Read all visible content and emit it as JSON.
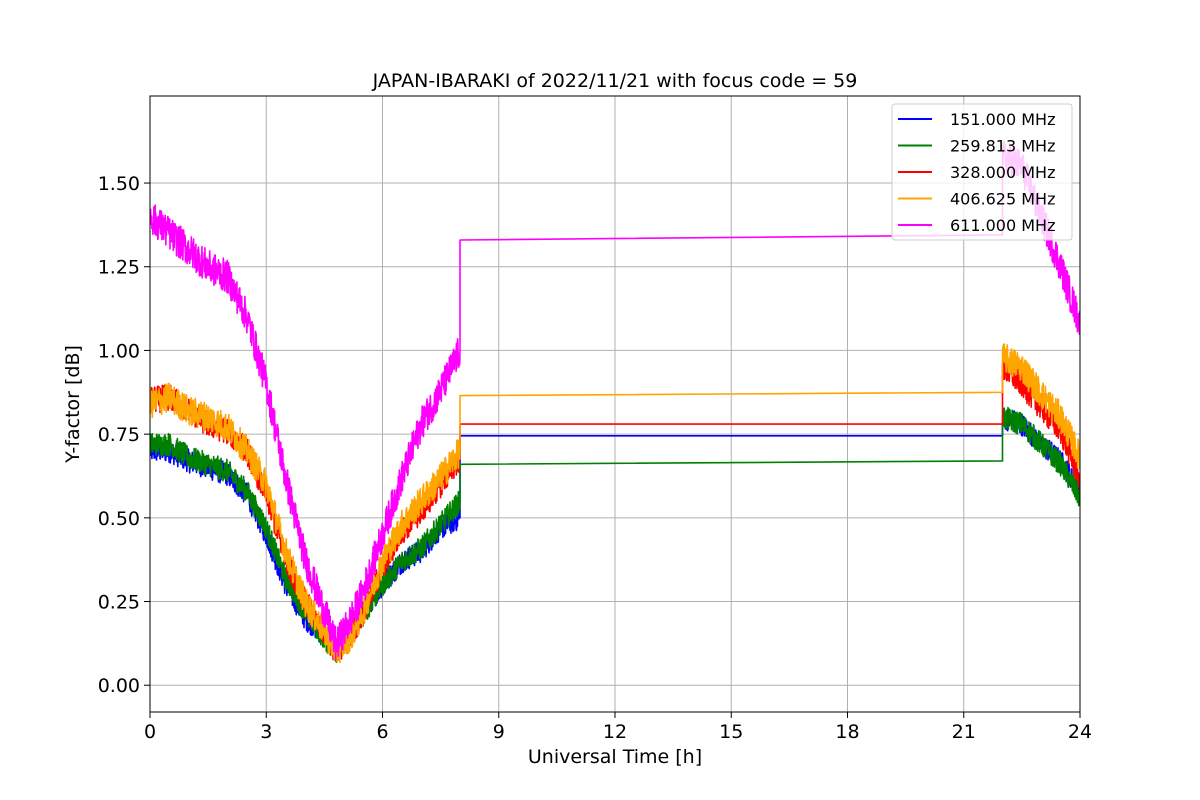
{
  "chart_data": {
    "type": "line",
    "title": "JAPAN-IBARAKI of 2022/11/21 with focus code = 59",
    "xlabel": "Universal Time [h]",
    "ylabel": "Y-factor [dB]",
    "xlim": [
      0,
      24
    ],
    "ylim": [
      -0.08,
      1.76
    ],
    "xticks": [
      0,
      3,
      6,
      9,
      12,
      15,
      18,
      21,
      24
    ],
    "xtick_labels": [
      "0",
      "3",
      "6",
      "9",
      "12",
      "15",
      "18",
      "21",
      "24"
    ],
    "yticks": [
      0.0,
      0.25,
      0.5,
      0.75,
      1.0,
      1.25,
      1.5
    ],
    "ytick_labels": [
      "0.00",
      "0.25",
      "0.50",
      "0.75",
      "1.00",
      "1.25",
      "1.50"
    ],
    "grid": true,
    "legend_position": "top-right",
    "series": [
      {
        "name": "151.000 MHz",
        "color": "#0000ff",
        "noise": 0.035,
        "x": [
          0,
          0.5,
          1.0,
          1.5,
          2.0,
          2.5,
          3.0,
          3.5,
          4.0,
          4.5,
          4.8,
          5.2,
          5.5,
          6.0,
          6.5,
          7.0,
          7.5,
          8.0,
          8.0,
          22.0,
          22.0,
          22.5,
          23.0,
          23.5,
          24.0
        ],
        "y": [
          0.7,
          0.7,
          0.67,
          0.65,
          0.63,
          0.57,
          0.45,
          0.3,
          0.2,
          0.15,
          0.1,
          0.18,
          0.22,
          0.3,
          0.37,
          0.4,
          0.47,
          0.5,
          0.745,
          0.745,
          0.8,
          0.78,
          0.72,
          0.67,
          0.58
        ]
      },
      {
        "name": "259.813 MHz",
        "color": "#008000",
        "noise": 0.035,
        "x": [
          0,
          0.5,
          1.0,
          1.5,
          2.0,
          2.5,
          3.0,
          3.5,
          4.0,
          4.5,
          4.8,
          5.2,
          5.5,
          6.0,
          6.5,
          7.0,
          7.5,
          8.0,
          8.0,
          22.0,
          22.0,
          22.5,
          23.0,
          23.5,
          24.0
        ],
        "y": [
          0.72,
          0.72,
          0.68,
          0.66,
          0.64,
          0.58,
          0.47,
          0.32,
          0.22,
          0.14,
          0.1,
          0.17,
          0.21,
          0.3,
          0.37,
          0.41,
          0.48,
          0.55,
          0.66,
          0.67,
          0.8,
          0.78,
          0.72,
          0.66,
          0.56
        ]
      },
      {
        "name": "328.000 MHz",
        "color": "#ff0000",
        "noise": 0.04,
        "x": [
          0,
          0.5,
          1.0,
          1.5,
          2.0,
          2.5,
          3.0,
          3.5,
          4.0,
          4.5,
          4.8,
          5.2,
          5.5,
          6.0,
          6.5,
          7.0,
          7.5,
          8.0,
          8.0,
          22.0,
          22.0,
          22.5,
          23.0,
          23.5,
          24.0
        ],
        "y": [
          0.85,
          0.86,
          0.82,
          0.78,
          0.76,
          0.7,
          0.57,
          0.38,
          0.25,
          0.16,
          0.1,
          0.15,
          0.22,
          0.35,
          0.46,
          0.52,
          0.6,
          0.68,
          0.78,
          0.78,
          0.95,
          0.9,
          0.83,
          0.76,
          0.62
        ]
      },
      {
        "name": "406.625 MHz",
        "color": "#ffa500",
        "noise": 0.045,
        "x": [
          0,
          0.5,
          1.0,
          1.5,
          2.0,
          2.5,
          3.0,
          3.5,
          4.0,
          4.5,
          4.8,
          5.2,
          5.5,
          6.0,
          6.5,
          7.0,
          7.5,
          8.0,
          8.0,
          22.0,
          22.0,
          22.5,
          23.0,
          23.5,
          24.0
        ],
        "y": [
          0.84,
          0.86,
          0.82,
          0.8,
          0.77,
          0.7,
          0.6,
          0.4,
          0.25,
          0.16,
          0.1,
          0.15,
          0.22,
          0.37,
          0.48,
          0.55,
          0.62,
          0.7,
          0.865,
          0.875,
          0.98,
          0.95,
          0.87,
          0.8,
          0.68
        ]
      },
      {
        "name": "611.000 MHz",
        "color": "#ff00ff",
        "noise": 0.05,
        "x": [
          0,
          0.5,
          1.0,
          1.5,
          2.0,
          2.5,
          3.0,
          3.5,
          4.0,
          4.5,
          4.8,
          5.2,
          5.5,
          6.0,
          6.5,
          7.0,
          7.5,
          8.0,
          8.0,
          22.0,
          22.0,
          22.5,
          23.0,
          23.5,
          24.0
        ],
        "y": [
          1.4,
          1.35,
          1.3,
          1.25,
          1.22,
          1.1,
          0.9,
          0.62,
          0.38,
          0.22,
          0.12,
          0.2,
          0.28,
          0.45,
          0.62,
          0.78,
          0.88,
          1.0,
          1.33,
          1.345,
          1.58,
          1.55,
          1.4,
          1.25,
          1.08
        ]
      }
    ]
  }
}
